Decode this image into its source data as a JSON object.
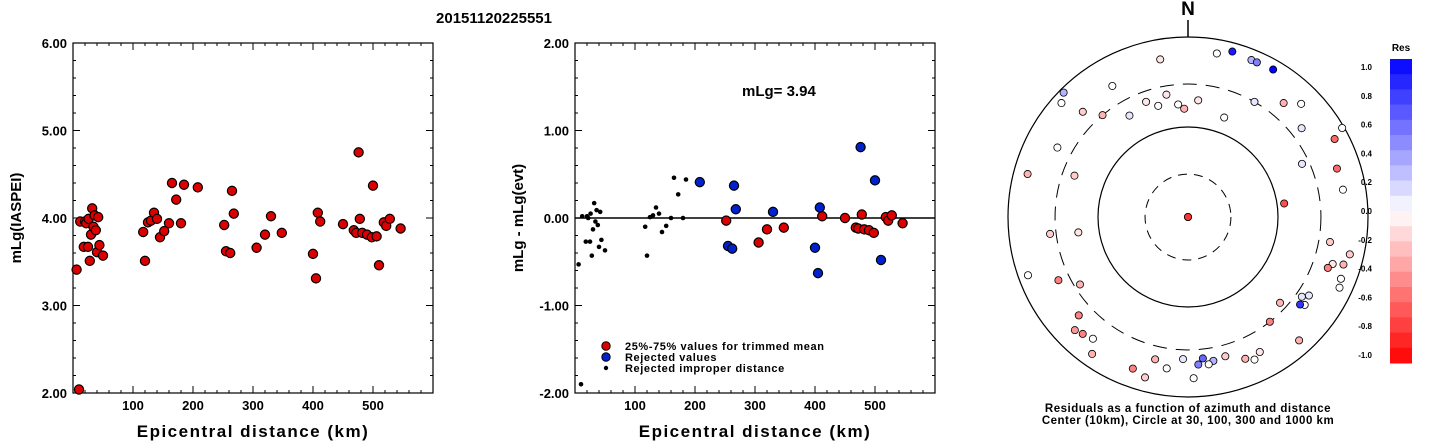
{
  "title": "20151120225551",
  "chart_data": [
    {
      "type": "scatter",
      "xlabel": "Epicentral distance (km)",
      "ylabel": "mLg(IASPEI)",
      "xlim": [
        0,
        600
      ],
      "ylim": [
        2.0,
        6.0
      ],
      "xticks": [
        "100",
        "200",
        "300",
        "400",
        "500"
      ],
      "yticks": [
        "2.00",
        "3.00",
        "4.00",
        "5.00",
        "6.00"
      ],
      "points": [
        [
          6,
          3.41
        ],
        [
          10,
          2.04
        ],
        [
          12,
          3.96
        ],
        [
          18,
          3.67
        ],
        [
          20,
          3.96
        ],
        [
          22,
          3.94
        ],
        [
          25,
          3.67
        ],
        [
          26,
          3.99
        ],
        [
          28,
          3.51
        ],
        [
          30,
          3.81
        ],
        [
          32,
          4.11
        ],
        [
          34,
          3.9
        ],
        [
          36,
          4.03
        ],
        [
          38,
          3.86
        ],
        [
          40,
          3.61
        ],
        [
          42,
          4.01
        ],
        [
          44,
          3.69
        ],
        [
          50,
          3.57
        ],
        [
          117,
          3.84
        ],
        [
          120,
          3.51
        ],
        [
          125,
          3.95
        ],
        [
          130,
          3.97
        ],
        [
          135,
          4.06
        ],
        [
          140,
          3.99
        ],
        [
          145,
          3.78
        ],
        [
          152,
          3.85
        ],
        [
          160,
          3.94
        ],
        [
          165,
          4.4
        ],
        [
          172,
          4.21
        ],
        [
          180,
          3.94
        ],
        [
          185,
          4.38
        ],
        [
          208,
          4.35
        ],
        [
          252,
          3.92
        ],
        [
          255,
          3.62
        ],
        [
          262,
          3.6
        ],
        [
          265,
          4.31
        ],
        [
          268,
          4.05
        ],
        [
          306,
          3.66
        ],
        [
          320,
          3.81
        ],
        [
          330,
          4.02
        ],
        [
          348,
          3.83
        ],
        [
          400,
          3.59
        ],
        [
          405,
          3.31
        ],
        [
          408,
          4.06
        ],
        [
          412,
          3.96
        ],
        [
          450,
          3.93
        ],
        [
          468,
          3.86
        ],
        [
          472,
          3.83
        ],
        [
          476,
          4.75
        ],
        [
          478,
          3.99
        ],
        [
          482,
          3.83
        ],
        [
          490,
          3.81
        ],
        [
          498,
          3.78
        ],
        [
          500,
          4.37
        ],
        [
          506,
          3.79
        ],
        [
          510,
          3.46
        ],
        [
          518,
          3.95
        ],
        [
          522,
          3.91
        ],
        [
          528,
          3.99
        ],
        [
          546,
          3.88
        ]
      ]
    },
    {
      "type": "scatter",
      "xlabel": "Epicentral distance (km)",
      "ylabel": "mLg - mLg(evt)",
      "xlim": [
        0,
        600
      ],
      "ylim": [
        -2.0,
        2.0
      ],
      "xticks": [
        "100",
        "200",
        "300",
        "400",
        "500"
      ],
      "yticks": [
        "-2.00",
        "-1.00",
        "0.00",
        "1.00",
        "2.00"
      ],
      "annotation": "mLg= 3.94",
      "legend": [
        {
          "label": "25%-75% values for trimmed mean",
          "color": "#dd0000",
          "marker": "circle"
        },
        {
          "label": "Rejected values",
          "color": "#0022cc",
          "marker": "circle"
        },
        {
          "label": "Rejected improper distance",
          "color": "#000000",
          "marker": "dot"
        }
      ],
      "series": [
        {
          "marker": "red",
          "points": [
            [
              252,
              -0.03
            ],
            [
              306,
              -0.28
            ],
            [
              320,
              -0.13
            ],
            [
              348,
              -0.11
            ],
            [
              412,
              0.02
            ],
            [
              450,
              0.0
            ],
            [
              468,
              -0.11
            ],
            [
              472,
              -0.12
            ],
            [
              478,
              0.04
            ],
            [
              482,
              -0.13
            ],
            [
              490,
              -0.14
            ],
            [
              498,
              -0.17
            ],
            [
              518,
              0.01
            ],
            [
              522,
              -0.03
            ],
            [
              528,
              0.03
            ],
            [
              546,
              -0.06
            ]
          ]
        },
        {
          "marker": "blue",
          "points": [
            [
              208,
              0.41
            ],
            [
              255,
              -0.32
            ],
            [
              262,
              -0.35
            ],
            [
              265,
              0.37
            ],
            [
              268,
              0.1
            ],
            [
              330,
              0.07
            ],
            [
              400,
              -0.34
            ],
            [
              405,
              -0.63
            ],
            [
              408,
              0.12
            ],
            [
              476,
              0.81
            ],
            [
              500,
              0.43
            ],
            [
              510,
              -0.48
            ]
          ]
        },
        {
          "marker": "black",
          "points": [
            [
              6,
              -0.53
            ],
            [
              10,
              -1.9
            ],
            [
              12,
              0.02
            ],
            [
              18,
              -0.27
            ],
            [
              20,
              0.02
            ],
            [
              22,
              0.0
            ],
            [
              25,
              -0.27
            ],
            [
              26,
              0.05
            ],
            [
              28,
              -0.43
            ],
            [
              30,
              -0.13
            ],
            [
              32,
              0.17
            ],
            [
              34,
              -0.04
            ],
            [
              36,
              0.09
            ],
            [
              38,
              -0.08
            ],
            [
              40,
              -0.33
            ],
            [
              42,
              0.07
            ],
            [
              44,
              -0.25
            ],
            [
              50,
              -0.37
            ],
            [
              117,
              -0.1
            ],
            [
              120,
              -0.43
            ],
            [
              125,
              0.01
            ],
            [
              130,
              0.03
            ],
            [
              135,
              0.12
            ],
            [
              140,
              0.05
            ],
            [
              145,
              -0.16
            ],
            [
              152,
              -0.09
            ],
            [
              160,
              0.0
            ],
            [
              165,
              0.46
            ],
            [
              172,
              0.27
            ],
            [
              180,
              0.0
            ],
            [
              185,
              0.44
            ]
          ]
        }
      ]
    },
    {
      "type": "scatter",
      "subtype": "polar residual plot",
      "north_label": "N",
      "caption_line1": "Residuals as a function of azimuth and distance",
      "caption_line2": "Center (10km), Circle at 30, 100, 300 and 1000 km",
      "rings_km": [
        30,
        100,
        300,
        1000
      ],
      "colorbar": {
        "title": "Res",
        "ticks": [
          "1.0",
          "0.8",
          "0.6",
          "0.4",
          "0.2",
          "0.0",
          "-0.2",
          "-0.4",
          "-0.6",
          "-0.8",
          "-1.0"
        ]
      },
      "points": [
        [
          0,
          0,
          0.0
        ],
        [
          350,
          600,
          -0.1
        ],
        [
          10,
          5,
          -0.8
        ],
        [
          15,
          800,
          0.9
        ],
        [
          22,
          760,
          0.3
        ],
        [
          24,
          760,
          0.5
        ],
        [
          30,
          780,
          1.0
        ],
        [
          40,
          450,
          -0.3
        ],
        [
          52,
          400,
          0.1
        ],
        [
          62,
          700,
          -0.6
        ],
        [
          65,
          250,
          0.1
        ],
        [
          72,
          550,
          -0.6
        ],
        [
          80,
          560,
          0.0
        ],
        [
          82,
          120,
          -0.7
        ],
        [
          100,
          400,
          -0.2
        ],
        [
          103,
          700,
          -0.2
        ],
        [
          107,
          640,
          -0.3
        ],
        [
          108,
          490,
          -0.1
        ],
        [
          110,
          450,
          -0.5
        ],
        [
          112,
          680,
          0.0
        ],
        [
          115,
          720,
          0.0
        ],
        [
          123,
          400,
          0.1
        ],
        [
          125,
          350,
          0.1
        ],
        [
          127,
          420,
          0.0
        ],
        [
          128,
          380,
          0.8
        ],
        [
          133,
          250,
          -0.3
        ],
        [
          138,
          700,
          -0.3
        ],
        [
          142,
          300,
          -0.5
        ],
        [
          152,
          500,
          -0.1
        ],
        [
          155,
          560,
          0.0
        ],
        [
          158,
          500,
          -0.3
        ],
        [
          165,
          400,
          -0.2
        ],
        [
          170,
          420,
          0.3
        ],
        [
          172,
          450,
          0.0
        ],
        [
          178,
          620,
          0.0
        ],
        [
          174,
          380,
          0.6
        ],
        [
          176,
          440,
          0.5
        ],
        [
          182,
          380,
          0.1
        ],
        [
          188,
          500,
          0.0
        ],
        [
          193,
          420,
          -0.3
        ],
        [
          195,
          700,
          -0.2
        ],
        [
          200,
          620,
          -0.5
        ],
        [
          215,
          720,
          -0.3
        ],
        [
          218,
          520,
          0.0
        ],
        [
          222,
          560,
          -0.5
        ],
        [
          225,
          600,
          -0.4
        ],
        [
          228,
          430,
          -0.5
        ],
        [
          238,
          260,
          -0.3
        ],
        [
          244,
          400,
          -0.5
        ],
        [
          250,
          780,
          0.0
        ],
        [
          263,
          350,
          -0.2
        ],
        [
          262,
          170,
          -0.1
        ],
        [
          285,
          700,
          -0.3
        ],
        [
          290,
          220,
          -0.2
        ],
        [
          298,
          440,
          0.0
        ],
        [
          312,
          780,
          0.0
        ],
        [
          315,
          450,
          -0.2
        ],
        [
          330,
          200,
          0.1
        ],
        [
          320,
          300,
          -0.3
        ],
        [
          330,
          480,
          0.0
        ],
        [
          315,
          900,
          0.3
        ],
        [
          340,
          230,
          -0.1
        ],
        [
          345,
          190,
          0.0
        ],
        [
          350,
          240,
          -0.1
        ],
        [
          355,
          180,
          0.0
        ],
        [
          358,
          160,
          -0.3
        ],
        [
          5,
          200,
          -0.1
        ],
        [
          20,
          150,
          0.0
        ],
        [
          30,
          300,
          0.1
        ],
        [
          45,
          600,
          0.0
        ],
        [
          10,
          700,
          0.0
        ],
        [
          60,
          950,
          0.0
        ]
      ]
    }
  ]
}
